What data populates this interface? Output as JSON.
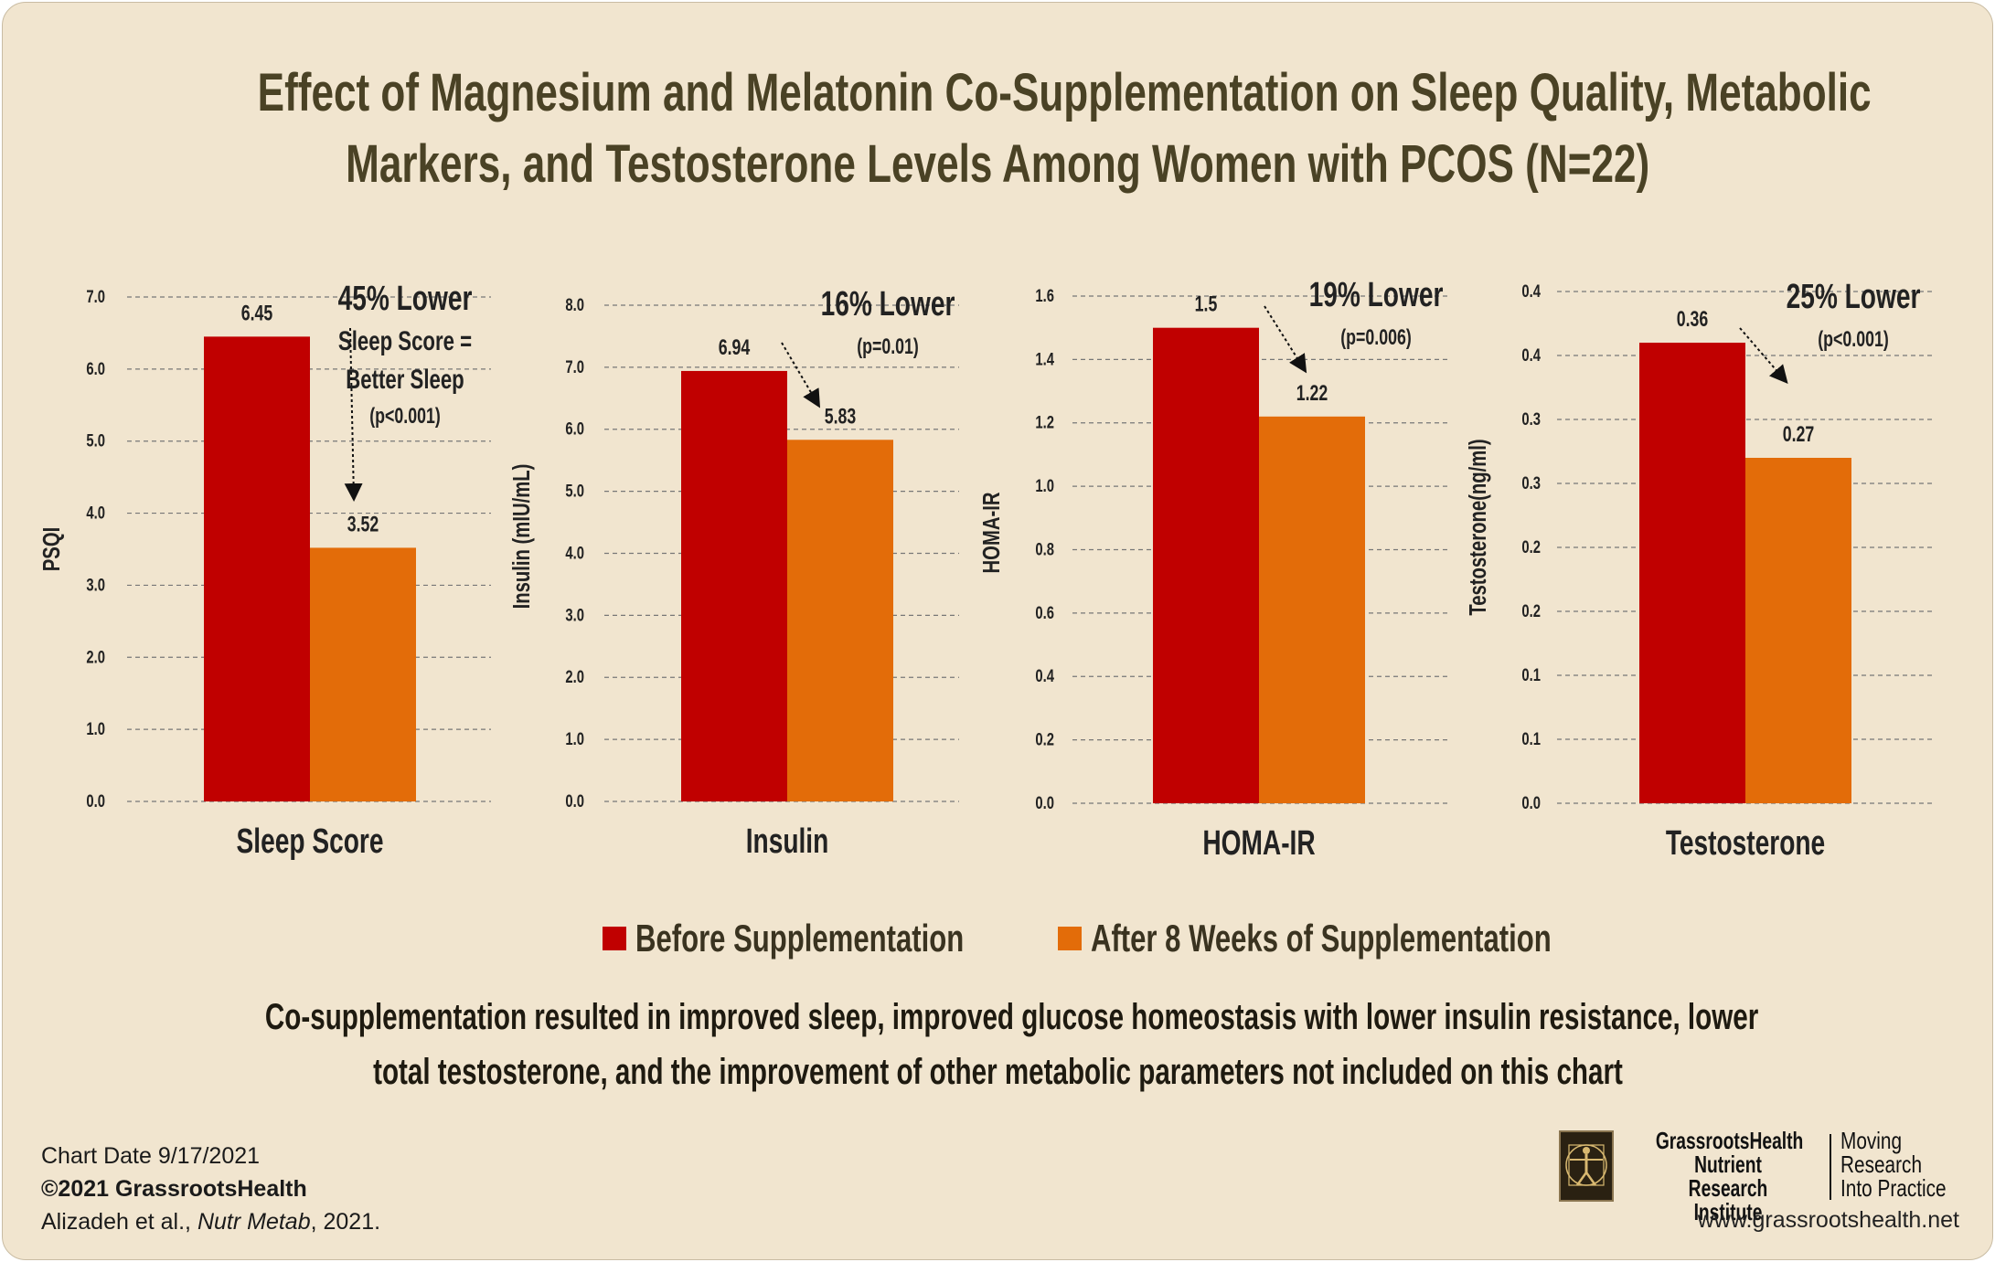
{
  "title_line1": "Effect of Magnesium and Melatonin Co-Supplementation on Sleep Quality, Metabolic",
  "title_line2": "Markers, and Testosterone Levels Among Women with PCOS (N=22)",
  "colors": {
    "before": "#c00000",
    "after": "#e36c09",
    "background": "#f1e5cf",
    "title": "#4a4225"
  },
  "legend": {
    "before": "Before Supplementation",
    "after": "After 8 Weeks of Supplementation"
  },
  "note_line1": "Co-supplementation resulted in improved sleep, improved glucose homeostasis with lower insulin resistance, lower",
  "note_line2": "total testosterone, and the improvement of other metabolic parameters not included on this chart",
  "footer": {
    "chart_date": "Chart Date 9/17/2021",
    "copyright": "©2021 GrassrootsHealth",
    "citation_authors": "Alizadeh et al., ",
    "citation_journal": "Nutr Metab",
    "citation_year": ", 2021."
  },
  "org": {
    "line1": "GrassrootsHealth",
    "line2": "Nutrient",
    "line3": "Research Institute"
  },
  "tagline": {
    "line1": "Moving",
    "line2": "Research",
    "line3": "Into Practice"
  },
  "url": "www.grassrootshealth.net",
  "chart_data": [
    {
      "type": "bar",
      "category": "Sleep Score",
      "ylabel": "PSQI",
      "ylim": [
        0,
        7
      ],
      "yticks": [
        "0.0",
        "1.0",
        "2.0",
        "3.0",
        "4.0",
        "5.0",
        "6.0",
        "7.0"
      ],
      "series": [
        {
          "name": "Before Supplementation",
          "values": [
            6.45
          ],
          "label": "6.45"
        },
        {
          "name": "After 8 Weeks of Supplementation",
          "values": [
            3.52
          ],
          "label": "3.52"
        }
      ],
      "annotation": [
        "45% Lower",
        "Sleep Score =",
        "Better Sleep",
        "(p<0.001)"
      ]
    },
    {
      "type": "bar",
      "category": "Insulin",
      "ylabel": "Insulin (mIU/mL)",
      "ylim": [
        0,
        8
      ],
      "yticks": [
        "0.0",
        "1.0",
        "2.0",
        "3.0",
        "4.0",
        "5.0",
        "6.0",
        "7.0",
        "8.0"
      ],
      "series": [
        {
          "name": "Before Supplementation",
          "values": [
            6.94
          ],
          "label": "6.94"
        },
        {
          "name": "After 8 Weeks of Supplementation",
          "values": [
            5.83
          ],
          "label": "5.83"
        }
      ],
      "annotation": [
        "16% Lower",
        "(p=0.01)"
      ]
    },
    {
      "type": "bar",
      "category": "HOMA-IR",
      "ylabel": "HOMA-IR",
      "ylim": [
        0,
        1.6
      ],
      "yticks": [
        "0.0",
        "0.2",
        "0.4",
        "0.6",
        "0.8",
        "1.0",
        "1.2",
        "1.4",
        "1.6"
      ],
      "series": [
        {
          "name": "Before Supplementation",
          "values": [
            1.5
          ],
          "label": "1.5"
        },
        {
          "name": "After 8 Weeks of Supplementation",
          "values": [
            1.22
          ],
          "label": "1.22"
        }
      ],
      "annotation": [
        "19% Lower",
        "(p=0.006)"
      ]
    },
    {
      "type": "bar",
      "category": "Testosterone",
      "ylabel": "Testosterone(ng/ml)",
      "ylim": [
        0,
        0.4
      ],
      "yticks": [
        "0.0",
        "0.1",
        "0.1",
        "0.2",
        "0.2",
        "0.3",
        "0.3",
        "0.4",
        "0.4"
      ],
      "series": [
        {
          "name": "Before Supplementation",
          "values": [
            0.36
          ],
          "label": "0.36"
        },
        {
          "name": "After 8 Weeks of Supplementation",
          "values": [
            0.27
          ],
          "label": "0.27"
        }
      ],
      "annotation": [
        "25% Lower",
        "(p<0.001)"
      ]
    }
  ]
}
